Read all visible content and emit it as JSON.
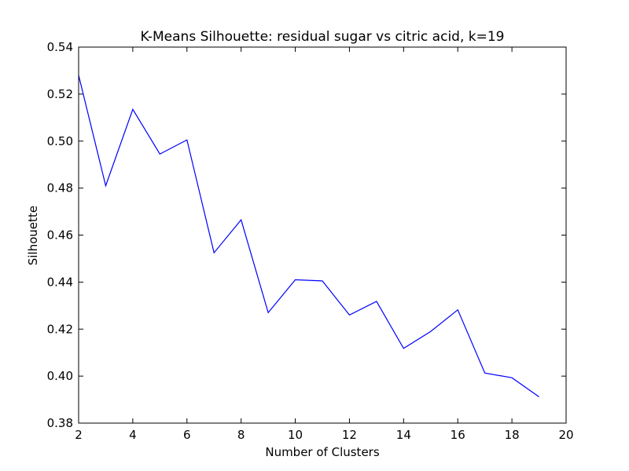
{
  "chart_data": {
    "type": "line",
    "title": "K-Means Silhouette: residual sugar vs citric acid, k=19",
    "xlabel": "Number of Clusters",
    "ylabel": "Silhouette",
    "xlim": [
      2,
      20
    ],
    "ylim": [
      0.38,
      0.54
    ],
    "xticks": [
      2,
      4,
      6,
      8,
      10,
      12,
      14,
      16,
      18,
      20
    ],
    "yticks": [
      0.38,
      0.4,
      0.42,
      0.44,
      0.46,
      0.48,
      0.5,
      0.52,
      0.54
    ],
    "ytick_labels": [
      "0.38",
      "0.40",
      "0.42",
      "0.44",
      "0.46",
      "0.48",
      "0.50",
      "0.52",
      "0.54"
    ],
    "grid": false,
    "series": [
      {
        "color": "#0000ff",
        "x": [
          2,
          3,
          4,
          5,
          6,
          7,
          8,
          9,
          10,
          11,
          12,
          13,
          14,
          15,
          16,
          17,
          18,
          19
        ],
        "y": [
          0.528,
          0.481,
          0.5135,
          0.4945,
          0.5005,
          0.4525,
          0.4665,
          0.427,
          0.441,
          0.4405,
          0.426,
          0.4318,
          0.4118,
          0.419,
          0.4282,
          0.4013,
          0.3993,
          0.3912
        ]
      }
    ]
  }
}
